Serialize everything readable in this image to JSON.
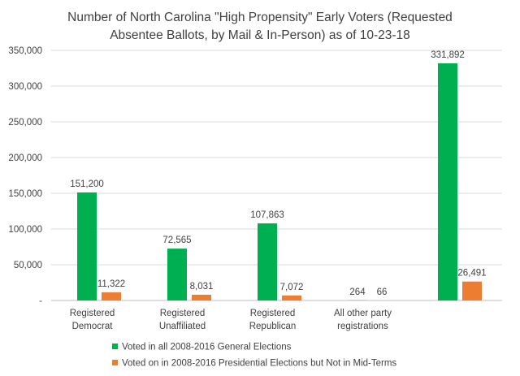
{
  "chart_data": {
    "type": "bar",
    "title": "Number of North Carolina \"High Propensity\" Early Voters (Requested Absentee Ballots, by Mail & In-Person) as of 10-23-18",
    "title_lines": [
      "Number of North Carolina \"High Propensity\" Early Voters (Requested",
      "Absentee Ballots, by Mail & In-Person) as of 10-23-18"
    ],
    "categories": [
      [
        "Registered",
        "Democrat"
      ],
      [
        "Registered",
        "Unaffiliated"
      ],
      [
        "Registered",
        "Republican"
      ],
      [
        "All other party",
        "registrations"
      ],
      [
        ""
      ]
    ],
    "series": [
      {
        "name": "Voted in all 2008-2016 General Elections",
        "color": "#00b050",
        "values": [
          151200,
          72565,
          107863,
          264,
          331892
        ],
        "labels": [
          "151,200",
          "72,565",
          "107,863",
          "264",
          "331,892"
        ]
      },
      {
        "name": "Voted on in 2008-2016 Presidential Elections but Not in Mid-Terms",
        "color": "#ed7d31",
        "values": [
          11322,
          8031,
          7072,
          66,
          26491
        ],
        "labels": [
          "11,322",
          "8,031",
          "7,072",
          "66",
          "26,491"
        ]
      }
    ],
    "ylim": [
      0,
      350000
    ],
    "yticks": [
      0,
      50000,
      100000,
      150000,
      200000,
      250000,
      300000,
      350000
    ],
    "ytick_labels": [
      "-",
      "50,000",
      "100,000",
      "150,000",
      "200,000",
      "250,000",
      "300,000",
      "350,000"
    ],
    "xlabel": "",
    "ylabel": "",
    "grid": true,
    "legend_position": "bottom",
    "colors": {
      "grid": "#d9d9d9",
      "axis": "#bfbfbf",
      "text": "#404040"
    }
  }
}
